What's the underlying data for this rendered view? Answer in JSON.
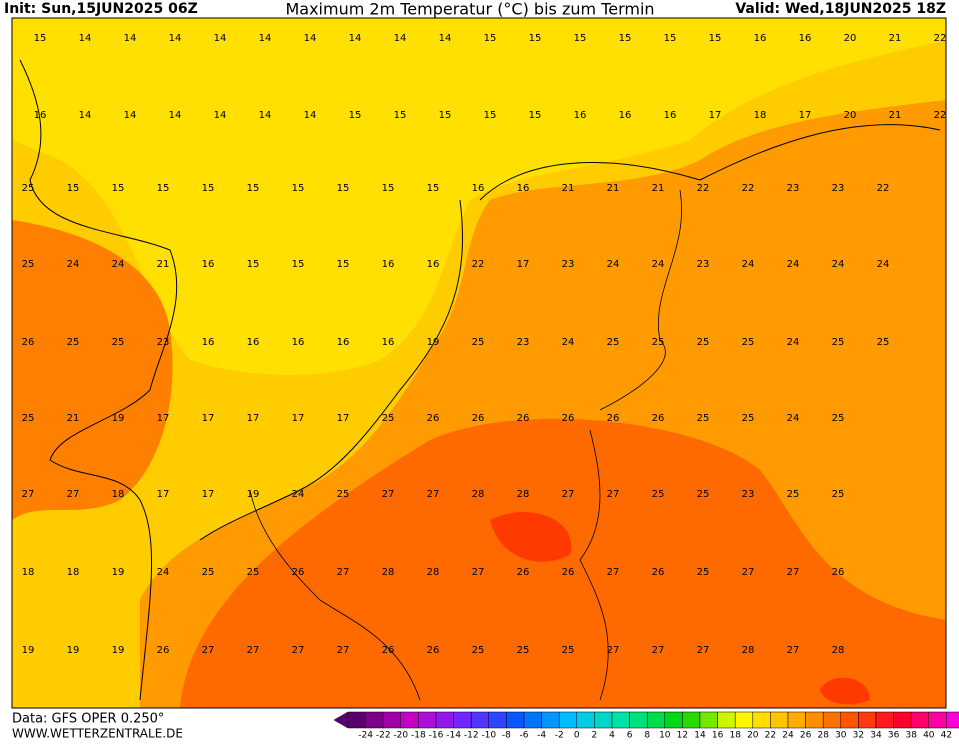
{
  "header": {
    "init": "Init: Sun,15JUN2025 06Z",
    "title": "Maximum 2m Temperatur (°C) bis zum Termin",
    "valid": "Valid: Wed,18JUN2025 18Z"
  },
  "footer": {
    "data": "Data: GFS OPER 0.250°",
    "site": "WWW.WETTERZENTRALE.DE"
  },
  "map": {
    "rows": [
      [
        15,
        14,
        14,
        14,
        14,
        14,
        14,
        14,
        14,
        14,
        15,
        15,
        15,
        15,
        15,
        15,
        16,
        16,
        20,
        21,
        22
      ],
      [
        16,
        14,
        14,
        14,
        14,
        14,
        14,
        15,
        15,
        15,
        15,
        15,
        16,
        16,
        16,
        17,
        18,
        17,
        20,
        21,
        22
      ],
      [
        25,
        15,
        15,
        15,
        15,
        15,
        15,
        15,
        15,
        15,
        16,
        16,
        21,
        21,
        21,
        22,
        22,
        23,
        23,
        22
      ],
      [
        25,
        24,
        24,
        21,
        16,
        15,
        15,
        15,
        16,
        16,
        22,
        17,
        23,
        24,
        24,
        23,
        24,
        24,
        24,
        24
      ],
      [
        26,
        25,
        25,
        23,
        16,
        16,
        16,
        16,
        16,
        19,
        25,
        23,
        24,
        25,
        25,
        25,
        25,
        24,
        25,
        25
      ],
      [
        25,
        21,
        19,
        17,
        17,
        17,
        17,
        17,
        25,
        26,
        26,
        26,
        26,
        26,
        26,
        25,
        25,
        24,
        25
      ],
      [
        27,
        27,
        18,
        17,
        17,
        19,
        24,
        25,
        27,
        27,
        28,
        28,
        27,
        27,
        25,
        25,
        23,
        25,
        25
      ],
      [
        18,
        18,
        19,
        24,
        25,
        25,
        26,
        27,
        28,
        28,
        27,
        26,
        26,
        27,
        26,
        25,
        27,
        27,
        26
      ],
      [
        19,
        19,
        19,
        26,
        27,
        27,
        27,
        27,
        26,
        26,
        25,
        25,
        25,
        27,
        27,
        27,
        28,
        27,
        28
      ]
    ]
  },
  "colorbar": {
    "labels": [
      -24,
      -22,
      -20,
      -18,
      -16,
      -14,
      -12,
      -10,
      -8,
      -6,
      -4,
      -2,
      0,
      2,
      4,
      6,
      8,
      10,
      12,
      14,
      16,
      18,
      20,
      22,
      24,
      26,
      28,
      30,
      32,
      34,
      36,
      38,
      40,
      42
    ]
  }
}
